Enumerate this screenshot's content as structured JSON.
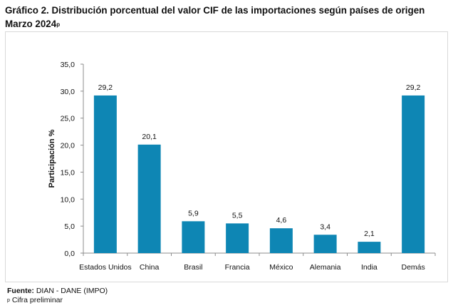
{
  "title": {
    "line1": "Gráfico 2. Distribución porcentual del valor CIF de las importaciones según países de origen",
    "line2": "Marzo 2024",
    "line2_sup": "p"
  },
  "chart_data": {
    "type": "bar",
    "categories": [
      "Estados Unidos",
      "China",
      "Brasil",
      "Francia",
      "México",
      "Alemania",
      "India",
      "Demás"
    ],
    "values": [
      29.2,
      20.1,
      5.9,
      5.5,
      4.6,
      3.4,
      2.1,
      29.2
    ],
    "value_labels": [
      "29,2",
      "20,1",
      "5,9",
      "5,5",
      "4,6",
      "3,4",
      "2,1",
      "29,2"
    ],
    "ylabel": "Participación %",
    "xlabel": "",
    "ylim": [
      0,
      35
    ],
    "yticks": [
      0,
      5,
      10,
      15,
      20,
      25,
      30,
      35
    ],
    "ytick_labels": [
      "0,0",
      "5,0",
      "10,0",
      "15,0",
      "20,0",
      "25,0",
      "30,0",
      "35,0"
    ],
    "grid": false,
    "bar_color": "#0e86b4"
  },
  "footer": {
    "source_label": "Fuente:",
    "source_text": " DIAN - DANE (IMPO)",
    "note_sup": "p",
    "note_text": " Cifra preliminar"
  }
}
